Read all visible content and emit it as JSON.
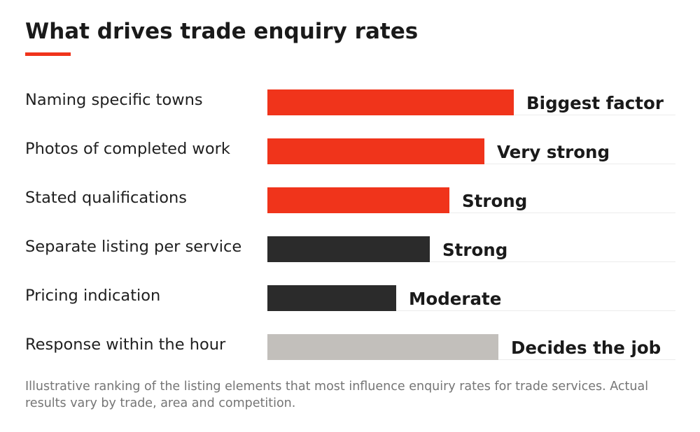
{
  "chart_data": {
    "type": "bar",
    "orientation": "horizontal",
    "title": "What drives trade enquiry rates",
    "categories": [
      "Naming specific towns",
      "Photos of completed work",
      "Stated qualifications",
      "Separate listing per service",
      "Pricing indication",
      "Response within the hour"
    ],
    "values": [
      0.88,
      0.775,
      0.65,
      0.58,
      0.46,
      0.825
    ],
    "bar_labels": [
      "Biggest factor",
      "Very strong",
      "Strong",
      "Strong",
      "Moderate",
      "Decides the job"
    ],
    "bar_colors": [
      "#f0341b",
      "#f0341b",
      "#f0341b",
      "#2b2b2b",
      "#2b2b2b",
      "#c2bfbb"
    ],
    "xlim": [
      0,
      1
    ],
    "xlabel": "",
    "ylabel": "",
    "grid": false,
    "legend": "none",
    "footnote": "Illustrative ranking of the listing elements that most influence enquiry rates for trade services. Actual results vary by trade, area and competition."
  },
  "colors": {
    "accent": "#f0341b",
    "dark": "#2b2b2b",
    "neutral": "#c2bfbb",
    "separator": "#ececec"
  }
}
